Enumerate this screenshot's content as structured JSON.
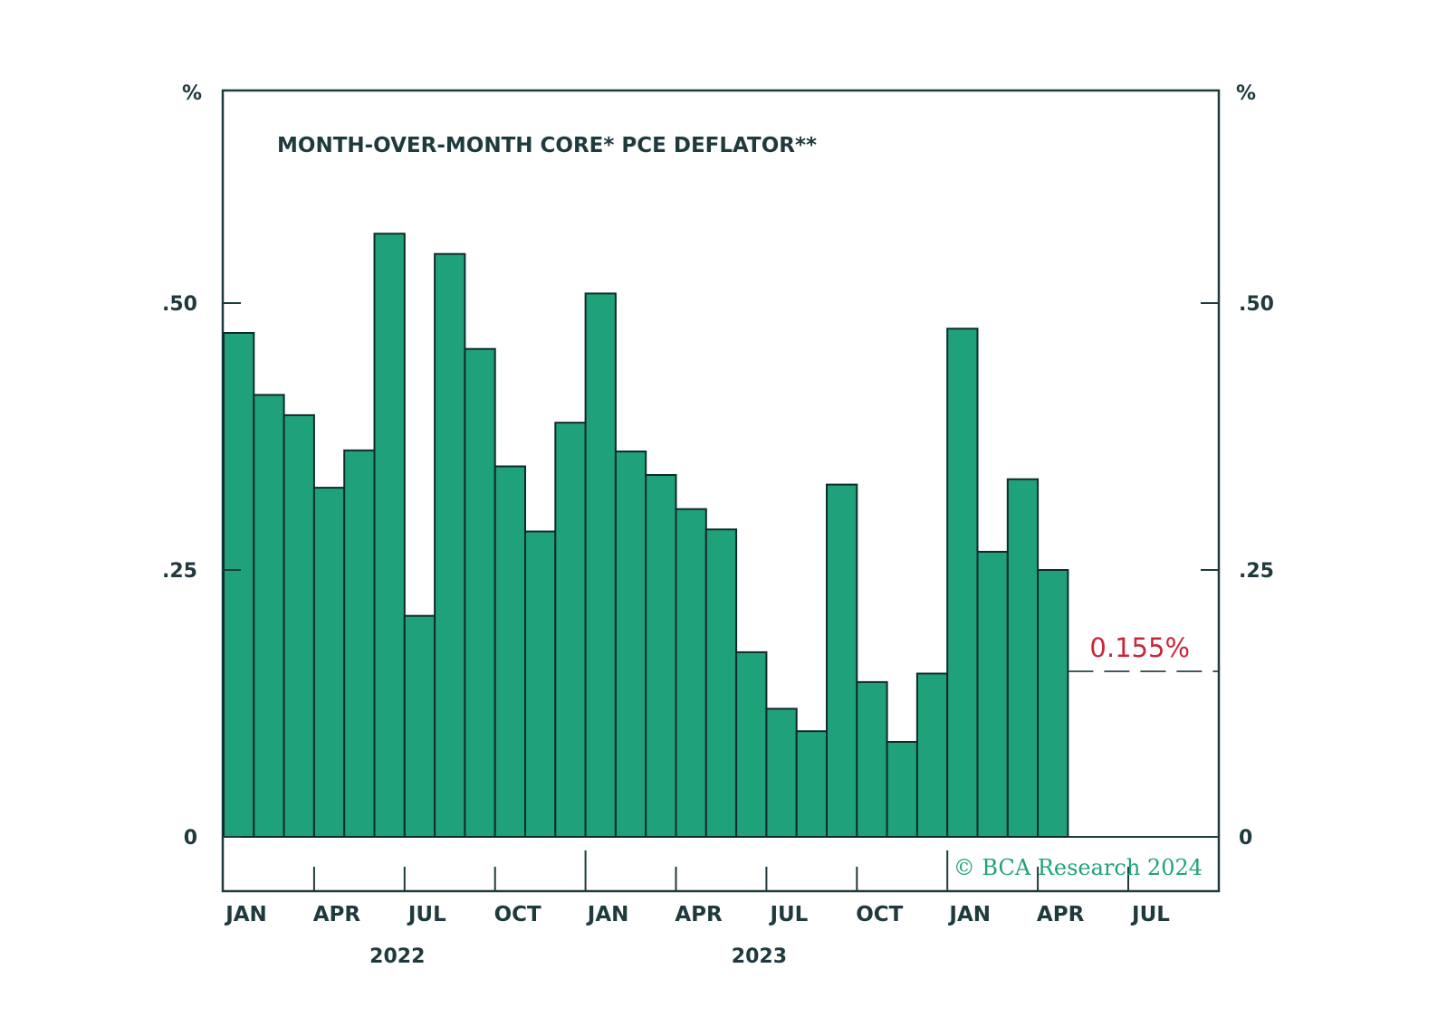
{
  "chart_data": {
    "type": "bar",
    "title": "MONTH-OVER-MONTH CORE* PCE DEFLATOR**",
    "ylabel_left": "%",
    "ylabel_right": "%",
    "ylim": [
      0,
      0.6
    ],
    "yticks": [
      0,
      0.25,
      0.5
    ],
    "ytick_labels": [
      "0",
      ".25",
      ".50"
    ],
    "categories": [
      "2022-01",
      "2022-02",
      "2022-03",
      "2022-04",
      "2022-05",
      "2022-06",
      "2022-07",
      "2022-08",
      "2022-09",
      "2022-10",
      "2022-11",
      "2022-12",
      "2023-01",
      "2023-02",
      "2023-03",
      "2023-04",
      "2023-05",
      "2023-06",
      "2023-07",
      "2023-08",
      "2023-09",
      "2023-10",
      "2023-11",
      "2023-12",
      "2024-01",
      "2024-02",
      "2024-03",
      "2024-04"
    ],
    "values": [
      0.472,
      0.414,
      0.395,
      0.327,
      0.362,
      0.565,
      0.207,
      0.546,
      0.457,
      0.347,
      0.286,
      0.388,
      0.509,
      0.361,
      0.339,
      0.307,
      0.288,
      0.173,
      0.12,
      0.099,
      0.33,
      0.145,
      0.089,
      0.153,
      0.476,
      0.267,
      0.335,
      0.25
    ],
    "bar_color": "#1fa27a",
    "bar_edge_color": "#0f2a2c",
    "reference_line": {
      "value": 0.155,
      "label": "0.155%",
      "color": "#c8283a",
      "style": "dashed"
    },
    "x_month_labels": [
      {
        "label": "JAN",
        "month_index": 0
      },
      {
        "label": "APR",
        "month_index": 3
      },
      {
        "label": "JUL",
        "month_index": 6
      },
      {
        "label": "OCT",
        "month_index": 9
      },
      {
        "label": "JAN",
        "month_index": 12
      },
      {
        "label": "APR",
        "month_index": 15
      },
      {
        "label": "JUL",
        "month_index": 18
      },
      {
        "label": "OCT",
        "month_index": 21
      },
      {
        "label": "JAN",
        "month_index": 24
      },
      {
        "label": "APR",
        "month_index": 27
      },
      {
        "label": "JUL",
        "month_index": 30
      }
    ],
    "x_year_labels": [
      {
        "label": "2022",
        "month_index": 6
      },
      {
        "label": "2023",
        "month_index": 18
      }
    ],
    "x_range_months": [
      0,
      33
    ],
    "grid": false,
    "legend": "none",
    "copyright": "© BCA Research 2024"
  }
}
